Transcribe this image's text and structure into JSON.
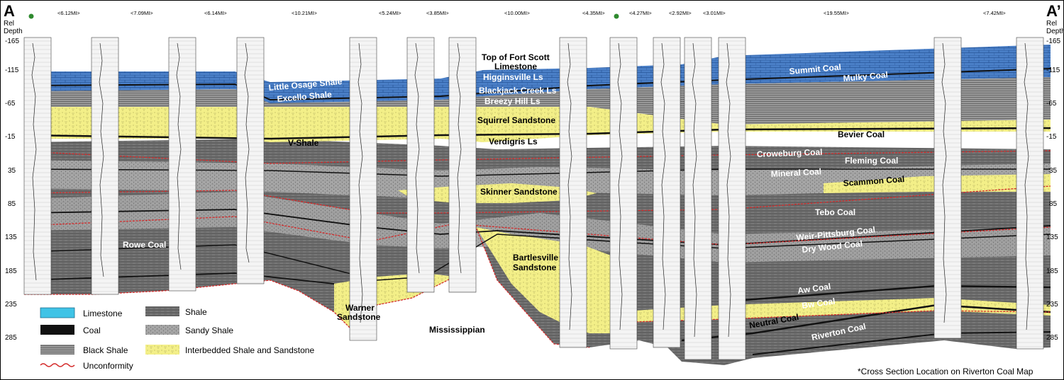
{
  "corners": {
    "left": "A",
    "right": "A’"
  },
  "axis": {
    "title_line1": "Rel",
    "title_line2": "Depth",
    "ticks": [
      "-165",
      "-115",
      "-65",
      "-15",
      "35",
      "85",
      "135",
      "185",
      "235",
      "285"
    ]
  },
  "distances": [
    "<6.12MI>",
    "<7.09MI>",
    "<6.14MI>",
    "<10.21MI>",
    "<5.24MI>",
    "<3.85MI>",
    "<10.00MI>",
    "<4.35MI>",
    "<4.27MI>",
    "<2.92MI>",
    "<3.01MI>",
    "<19.55MI>",
    "<7.42MI>"
  ],
  "colors": {
    "limestone": "#4a7fc7",
    "coal": "#111111",
    "black_shale": "#8d8d8d",
    "shale": "#6f6f6f",
    "sandy_shale": "#a9a9a9",
    "sandstone": "#f2ef8a",
    "unconformity": "#d42a2a"
  },
  "labels": {
    "top_fort_scott_1": "Top of Fort Scott",
    "top_fort_scott_2": "Limestone",
    "higginsville": "Higginsville Ls",
    "blackjack": "Blackjack Creek Ls",
    "breezy": "Breezy Hill Ls",
    "squirrel": "Squirrel Sandstone",
    "verdigris": "Verdigris Ls",
    "little_osage": "Little Osage Shale",
    "excello": "Excello Shale",
    "vshale": "V-Shale",
    "skinner": "Skinner Sandstone",
    "rowe": "Rowe Coal",
    "bartlesville_1": "Bartlesville",
    "bartlesville_2": "Sandstone",
    "warner_1": "Warner",
    "warner_2": "Sandstone",
    "mississippian": "Mississippian",
    "summit": "Summit Coal",
    "mulky": "Mulky Coal",
    "bevier": "Bevier Coal",
    "croweburg": "Croweburg Coal",
    "fleming": "Fleming Coal",
    "mineral": "Mineral Coal",
    "scammon": "Scammon Coal",
    "tebo": "Tebo Coal",
    "weir": "Weir-Pittsburg Coal",
    "drywood": "Dry Wood Coal",
    "aw": "Aw Coal",
    "bw": "Bw Coal",
    "neutral": "Neutral Coal",
    "riverton": "Riverton Coal"
  },
  "legend": {
    "limestone": "Limestone",
    "coal": "Coal",
    "black_shale": "Black Shale",
    "unconformity": "Unconformity",
    "shale": "Shale",
    "sandy_shale": "Sandy Shale",
    "interbedded": "Interbedded Shale and Sandstone"
  },
  "footnote": "*Cross Section Location on Riverton Coal Map"
}
